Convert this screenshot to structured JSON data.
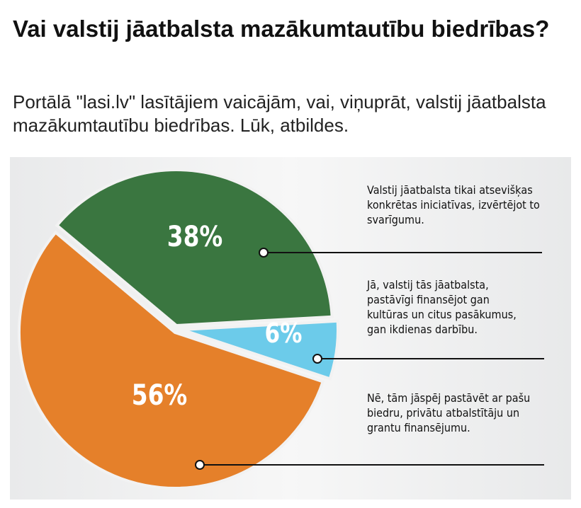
{
  "header": {
    "title": "Vai valstij jāatbalsta mazākumtautību biedrības?",
    "subtitle": "Portālā \"lasi.lv\" lasītājiem vaicājām, vai, viņuprāt, valstij jāatbalsta mazākumtautību biedrības. Lūk, atbildes."
  },
  "chart_data": {
    "type": "pie",
    "title": "Vai valstij jāatbalsta mazākumtautību biedrības?",
    "slices": [
      {
        "label": "Valstij jāatbalsta tikai atsevišķas konkrētas iniciatīvas, izvērtējot to svarīgumu.",
        "value": 38,
        "display": "38%",
        "color": "#3a7640"
      },
      {
        "label": "Jā, valstij tās jāatbalsta, pastāvīgi finansējot gan kultūras un citus pasākumus, gan ikdienas darbību.",
        "value": 6,
        "display": "6%",
        "color": "#6ccbea"
      },
      {
        "label": "Nē, tām jāspēj pastāvēt ar pašu biedru, privātu atbalstītāju un grantu finansējumu.",
        "value": 56,
        "display": "56%",
        "color": "#e5802a"
      }
    ],
    "legend": "right"
  }
}
